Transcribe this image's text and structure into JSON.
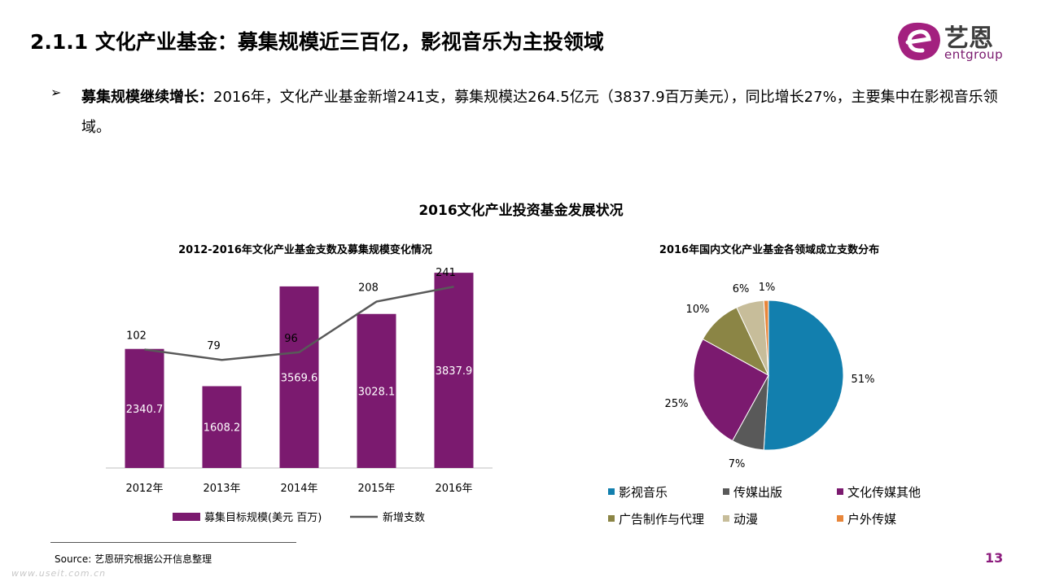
{
  "header": {
    "title": "2.1.1 文化产业基金：募集规模近三百亿，影视音乐为主投领域",
    "logo_cn": "艺恩",
    "logo_en": "entgroup"
  },
  "bullet": {
    "lead": "募集规模继续增长：",
    "text": "2016年，文化产业基金新增241支，募集规模达264.5亿元（3837.9百万美元），同比增长27%，主要集中在影视音乐领域。"
  },
  "main_title": "2016文化产业投资基金发展状况",
  "chart_data": [
    {
      "type": "bar",
      "title": "2012-2016年文化产业基金支数及募集规模变化情况",
      "categories": [
        "2012年",
        "2013年",
        "2014年",
        "2015年",
        "2016年"
      ],
      "series": [
        {
          "name": "募集目标规模(美元 百万)",
          "type": "bar",
          "values": [
            2340.7,
            1608.2,
            3569.6,
            3028.1,
            3837.9
          ],
          "labels": [
            "2340.7",
            "1608.2",
            "3569.6",
            "3028.1",
            "3837.9"
          ],
          "color": "#7b1a6f"
        },
        {
          "name": "新增支数",
          "type": "line",
          "values": [
            102,
            79,
            96,
            208,
            241
          ],
          "labels": [
            "102",
            "79",
            "96",
            "208",
            "241"
          ],
          "color": "#595959"
        }
      ],
      "bar_ylim": [
        0,
        4000
      ],
      "line_ylim": [
        -160,
        290
      ],
      "legend": "bottom"
    },
    {
      "type": "pie",
      "title": "2016年国内文化产业基金各领域成立支数分布",
      "slices": [
        {
          "name": "影视音乐",
          "value": 51,
          "label": "51%",
          "color": "#127fae"
        },
        {
          "name": "传媒出版",
          "value": 7,
          "label": "7%",
          "color": "#595959"
        },
        {
          "name": "文化传媒其他",
          "value": 25,
          "label": "25%",
          "color": "#7b1a6f"
        },
        {
          "name": "广告制作与代理",
          "value": 10,
          "label": "10%",
          "color": "#8b8545"
        },
        {
          "name": "动漫",
          "value": 6,
          "label": "6%",
          "color": "#c7bd9a"
        },
        {
          "name": "户外传媒",
          "value": 1,
          "label": "1%",
          "color": "#e8863a"
        }
      ],
      "legend": "bottom"
    }
  ],
  "footer": {
    "source": "Source: 艺恩研究根据公开信息整理",
    "page_number": "13",
    "watermark": "www.useit.com.cn"
  }
}
